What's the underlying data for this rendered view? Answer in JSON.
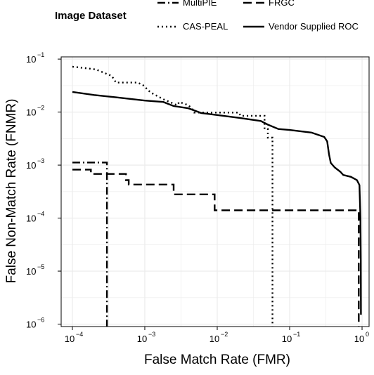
{
  "chart_data": {
    "type": "line",
    "xscale": "log10",
    "yscale": "log10",
    "xlabel": "False Match Rate (FMR)",
    "ylabel": "False Non-Match Rate (FNMR)",
    "xlim": [
      7e-05,
      1.25
    ],
    "ylim": [
      9e-07,
      0.11
    ],
    "x_ticks": [
      {
        "value": 0.0001,
        "base": "10",
        "exp": "−4"
      },
      {
        "value": 0.001,
        "base": "10",
        "exp": "−3"
      },
      {
        "value": 0.01,
        "base": "10",
        "exp": "−2"
      },
      {
        "value": 0.1,
        "base": "10",
        "exp": "−1"
      },
      {
        "value": 1,
        "base": "10",
        "exp": "0"
      }
    ],
    "y_ticks": [
      {
        "value": 0.1,
        "base": "10",
        "exp": "−1"
      },
      {
        "value": 0.01,
        "base": "10",
        "exp": "−2"
      },
      {
        "value": 0.001,
        "base": "10",
        "exp": "−3"
      },
      {
        "value": 0.0001,
        "base": "10",
        "exp": "−4"
      },
      {
        "value": 1e-05,
        "base": "10",
        "exp": "−5"
      },
      {
        "value": 1e-06,
        "base": "10",
        "exp": "−6"
      }
    ],
    "grid": true,
    "background": "#ffffff",
    "grid_color": "#ebebeb",
    "legend": {
      "title": "Image Dataset",
      "position": "top"
    },
    "series": [
      {
        "name": "MultiPIE",
        "dash": "dashdot",
        "color": "#000000",
        "points": [
          [
            0.0001,
            0.00112
          ],
          [
            0.0003,
            0.00112
          ],
          [
            0.0003,
            9e-07
          ]
        ]
      },
      {
        "name": "FRGC",
        "dash": "dashed",
        "color": "#000000",
        "points": [
          [
            0.0001,
            0.00082
          ],
          [
            0.00018,
            0.00082
          ],
          [
            0.00018,
            0.00068
          ],
          [
            0.00055,
            0.00068
          ],
          [
            0.00055,
            0.00052
          ],
          [
            0.0006,
            0.00052
          ],
          [
            0.0006,
            0.00043
          ],
          [
            0.0025,
            0.00043
          ],
          [
            0.0025,
            0.00028
          ],
          [
            0.0092,
            0.00028
          ],
          [
            0.0092,
            0.00014
          ],
          [
            0.9,
            0.00014
          ],
          [
            0.9,
            9e-07
          ]
        ]
      },
      {
        "name": "CAS-PEAL",
        "dash": "dotted",
        "color": "#000000",
        "points": [
          [
            0.0001,
            0.072
          ],
          [
            0.00021,
            0.064
          ],
          [
            0.00035,
            0.048
          ],
          [
            0.0004,
            0.036
          ],
          [
            0.0008,
            0.036
          ],
          [
            0.00095,
            0.032
          ],
          [
            0.0012,
            0.0235
          ],
          [
            0.0018,
            0.0175
          ],
          [
            0.0028,
            0.0135
          ],
          [
            0.003,
            0.0155
          ],
          [
            0.004,
            0.0135
          ],
          [
            0.0046,
            0.0112
          ],
          [
            0.0048,
            0.0098
          ],
          [
            0.02,
            0.0098
          ],
          [
            0.021,
            0.0085
          ],
          [
            0.045,
            0.0085
          ],
          [
            0.045,
            0.0048
          ],
          [
            0.05,
            0.0048
          ],
          [
            0.05,
            0.0033
          ],
          [
            0.058,
            0.0033
          ],
          [
            0.058,
            9e-07
          ]
        ]
      },
      {
        "name": "Vendor Supplied ROC",
        "dash": "solid",
        "color": "#000000",
        "points": [
          [
            0.0001,
            0.024
          ],
          [
            0.0002,
            0.021
          ],
          [
            0.0004,
            0.019
          ],
          [
            0.001,
            0.0165
          ],
          [
            0.0018,
            0.0155
          ],
          [
            0.0025,
            0.013
          ],
          [
            0.004,
            0.0118
          ],
          [
            0.006,
            0.0096
          ],
          [
            0.01,
            0.0088
          ],
          [
            0.02,
            0.0078
          ],
          [
            0.04,
            0.0068
          ],
          [
            0.05,
            0.0058
          ],
          [
            0.07,
            0.0048
          ],
          [
            0.1,
            0.0046
          ],
          [
            0.2,
            0.0041
          ],
          [
            0.3,
            0.0034
          ],
          [
            0.33,
            0.0028
          ],
          [
            0.35,
            0.0016
          ],
          [
            0.37,
            0.0011
          ],
          [
            0.42,
            0.0009
          ],
          [
            0.5,
            0.00075
          ],
          [
            0.55,
            0.00065
          ],
          [
            0.7,
            0.0006
          ],
          [
            0.85,
            0.00052
          ],
          [
            0.92,
            0.00042
          ],
          [
            0.95,
            0.0001
          ],
          [
            0.96,
            1.5e-05
          ],
          [
            0.965,
            1.5e-06
          ]
        ]
      }
    ]
  }
}
